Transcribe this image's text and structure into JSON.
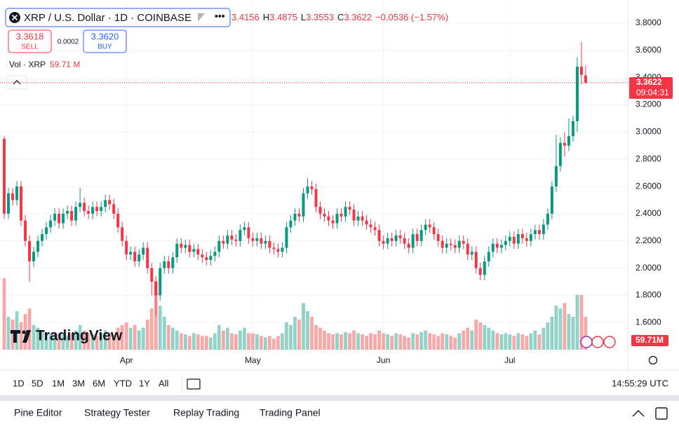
{
  "header": {
    "symbol": "XRP / U.S. Dollar · 1D · COINBASE",
    "open": "3.4156",
    "high_label": "H",
    "high": "3.4875",
    "low_label": "L",
    "low": "3.3553",
    "close_label": "C",
    "close": "3.3622",
    "change": "−0.0536 (−1.57%)",
    "sell_price": "3.3618",
    "sell": "SELL",
    "spread": "0.0002",
    "buy_price": "3.3620",
    "buy": "BUY",
    "volume_label": "Vol · XRP",
    "volume_value": "59.71 M"
  },
  "chart_data": {
    "type": "candlestick",
    "up_color": "#089981",
    "down_color": "#f23645",
    "up_volume_color": "#92d2c8",
    "down_volume_color": "#f7a9a8",
    "xlim": [
      -1,
      148
    ],
    "xticks": [
      {
        "value": 29,
        "label": "Apr"
      },
      {
        "value": 59,
        "label": "May"
      },
      {
        "value": 90,
        "label": "Jun"
      },
      {
        "value": 120,
        "label": "Jul"
      }
    ],
    "ylim": [
      1.37,
      3.97
    ],
    "yticks": [
      {
        "value": 3.8,
        "label": "3.8000"
      },
      {
        "value": 3.6,
        "label": "3.6000"
      },
      {
        "value": 3.4,
        "label": "3.4000"
      },
      {
        "value": 3.2,
        "label": "3.2000"
      },
      {
        "value": 3.0,
        "label": "3.0000"
      },
      {
        "value": 2.8,
        "label": "2.8000"
      },
      {
        "value": 2.6,
        "label": "2.6000"
      },
      {
        "value": 2.4,
        "label": "2.4000"
      },
      {
        "value": 2.2,
        "label": "2.2000"
      },
      {
        "value": 2.0,
        "label": "2.0000"
      },
      {
        "value": 1.8,
        "label": "1.8000"
      },
      {
        "value": 1.6,
        "label": "1.6000"
      }
    ],
    "grid": true,
    "open": [
      2.95,
      2.4,
      2.55,
      2.5,
      2.6,
      2.35,
      2.2,
      2.05,
      2.12,
      2.2,
      2.25,
      2.3,
      2.35,
      2.4,
      2.33,
      2.4,
      2.42,
      2.35,
      2.45,
      2.48,
      2.42,
      2.4,
      2.45,
      2.42,
      2.45,
      2.5,
      2.47,
      2.4,
      2.3,
      2.2,
      2.1,
      2.12,
      2.05,
      2.1,
      2.15,
      2.0,
      1.9,
      1.8,
      2.0,
      2.05,
      2.0,
      2.08,
      2.18,
      2.15,
      2.17,
      2.12,
      2.14,
      2.1,
      2.08,
      2.06,
      2.09,
      2.12,
      2.2,
      2.18,
      2.24,
      2.21,
      2.2,
      2.28,
      2.3,
      2.22,
      2.2,
      2.22,
      2.18,
      2.2,
      2.15,
      2.14,
      2.12,
      2.15,
      2.3,
      2.35,
      2.4,
      2.38,
      2.55,
      2.6,
      2.58,
      2.45,
      2.4,
      2.38,
      2.35,
      2.33,
      2.4,
      2.38,
      2.45,
      2.43,
      2.35,
      2.38,
      2.35,
      2.32,
      2.3,
      2.28,
      2.2,
      2.18,
      2.22,
      2.2,
      2.24,
      2.22,
      2.18,
      2.15,
      2.25,
      2.2,
      2.28,
      2.32,
      2.3,
      2.25,
      2.2,
      2.15,
      2.18,
      2.17,
      2.15,
      2.2,
      2.18,
      2.1,
      2.12,
      2.0,
      1.95,
      2.05,
      2.12,
      2.18,
      2.15,
      2.17,
      2.2,
      2.23,
      2.18,
      2.25,
      2.22,
      2.2,
      2.25,
      2.28,
      2.25,
      2.32,
      2.4,
      2.6,
      2.75,
      2.92,
      2.9,
      2.97,
      3.08,
      3.48,
      3.4156
    ],
    "high": [
      2.97,
      2.59,
      2.59,
      2.64,
      2.64,
      2.39,
      2.24,
      2.16,
      2.24,
      2.29,
      2.34,
      2.39,
      2.44,
      2.44,
      2.44,
      2.46,
      2.46,
      2.49,
      2.59,
      2.52,
      2.46,
      2.49,
      2.49,
      2.49,
      2.54,
      2.54,
      2.51,
      2.44,
      2.34,
      2.24,
      2.16,
      2.16,
      2.14,
      2.19,
      2.19,
      2.04,
      1.94,
      2.04,
      2.09,
      2.09,
      2.12,
      2.22,
      2.22,
      2.21,
      2.21,
      2.18,
      2.18,
      2.14,
      2.12,
      2.13,
      2.16,
      2.24,
      2.24,
      2.28,
      2.28,
      2.25,
      2.32,
      2.34,
      2.34,
      2.26,
      2.26,
      2.26,
      2.24,
      2.24,
      2.19,
      2.18,
      2.19,
      2.34,
      2.39,
      2.44,
      2.44,
      2.59,
      2.66,
      2.64,
      2.62,
      2.49,
      2.44,
      2.42,
      2.39,
      2.44,
      2.44,
      2.49,
      2.49,
      2.47,
      2.42,
      2.42,
      2.39,
      2.36,
      2.34,
      2.32,
      2.24,
      2.26,
      2.26,
      2.28,
      2.28,
      2.26,
      2.22,
      2.29,
      2.29,
      2.32,
      2.36,
      2.36,
      2.34,
      2.29,
      2.24,
      2.22,
      2.22,
      2.21,
      2.24,
      2.24,
      2.22,
      2.16,
      2.16,
      2.04,
      2.09,
      2.16,
      2.22,
      2.22,
      2.21,
      2.24,
      2.27,
      2.27,
      2.29,
      2.29,
      2.26,
      2.29,
      2.32,
      2.32,
      2.36,
      2.44,
      2.64,
      2.98,
      2.96,
      3.0,
      3.1,
      3.12,
      3.55,
      3.66,
      3.4875
    ],
    "low": [
      2.36,
      2.36,
      2.46,
      2.46,
      2.31,
      2.16,
      1.9,
      2.01,
      2.08,
      2.16,
      2.21,
      2.26,
      2.31,
      2.29,
      2.29,
      2.36,
      2.31,
      2.31,
      2.41,
      2.38,
      2.36,
      2.36,
      2.38,
      2.38,
      2.41,
      2.43,
      2.36,
      2.26,
      2.16,
      2.06,
      2.06,
      2.01,
      2.01,
      2.06,
      1.96,
      1.8,
      1.65,
      1.76,
      1.96,
      1.96,
      1.96,
      2.04,
      2.11,
      2.11,
      2.08,
      2.08,
      2.06,
      2.04,
      2.02,
      2.02,
      2.05,
      2.08,
      2.14,
      2.14,
      2.17,
      2.16,
      2.16,
      2.24,
      2.18,
      2.16,
      2.16,
      2.14,
      2.14,
      2.11,
      2.1,
      2.08,
      2.08,
      2.11,
      2.26,
      2.31,
      2.34,
      2.34,
      2.51,
      2.54,
      2.41,
      2.36,
      2.34,
      2.31,
      2.29,
      2.29,
      2.34,
      2.34,
      2.39,
      2.31,
      2.31,
      2.31,
      2.28,
      2.26,
      2.24,
      2.16,
      2.14,
      2.14,
      2.16,
      2.16,
      2.18,
      2.14,
      2.11,
      2.11,
      2.16,
      2.16,
      2.24,
      2.26,
      2.21,
      2.16,
      2.11,
      2.11,
      2.13,
      2.11,
      2.11,
      2.14,
      2.06,
      2.06,
      1.96,
      1.91,
      1.91,
      2.01,
      2.08,
      2.11,
      2.11,
      2.13,
      2.16,
      2.14,
      2.14,
      2.18,
      2.16,
      2.16,
      2.21,
      2.21,
      2.21,
      2.28,
      2.36,
      2.56,
      2.71,
      2.82,
      2.86,
      2.93,
      3.0,
      3.35,
      3.3553
    ],
    "close": [
      2.4,
      2.55,
      2.5,
      2.6,
      2.35,
      2.2,
      2.05,
      2.12,
      2.2,
      2.25,
      2.3,
      2.35,
      2.4,
      2.33,
      2.4,
      2.42,
      2.35,
      2.45,
      2.48,
      2.42,
      2.4,
      2.45,
      2.42,
      2.45,
      2.5,
      2.47,
      2.4,
      2.3,
      2.2,
      2.1,
      2.12,
      2.05,
      2.1,
      2.15,
      2.0,
      1.9,
      1.8,
      2.0,
      2.05,
      2.0,
      2.08,
      2.18,
      2.15,
      2.17,
      2.12,
      2.14,
      2.1,
      2.08,
      2.06,
      2.09,
      2.12,
      2.2,
      2.18,
      2.24,
      2.21,
      2.2,
      2.28,
      2.3,
      2.22,
      2.2,
      2.22,
      2.18,
      2.2,
      2.15,
      2.14,
      2.12,
      2.15,
      2.3,
      2.35,
      2.4,
      2.38,
      2.55,
      2.6,
      2.58,
      2.45,
      2.4,
      2.38,
      2.35,
      2.33,
      2.4,
      2.38,
      2.45,
      2.43,
      2.35,
      2.38,
      2.35,
      2.32,
      2.3,
      2.28,
      2.2,
      2.18,
      2.22,
      2.2,
      2.24,
      2.22,
      2.18,
      2.15,
      2.25,
      2.2,
      2.28,
      2.32,
      2.3,
      2.25,
      2.2,
      2.15,
      2.18,
      2.17,
      2.15,
      2.2,
      2.18,
      2.1,
      2.12,
      2.0,
      1.95,
      2.05,
      2.12,
      2.18,
      2.15,
      2.17,
      2.2,
      2.23,
      2.18,
      2.25,
      2.22,
      2.2,
      2.25,
      2.28,
      2.25,
      2.32,
      2.4,
      2.6,
      2.75,
      2.92,
      2.9,
      2.97,
      3.08,
      3.48,
      3.42,
      3.3622
    ],
    "volume": [
      130,
      60,
      55,
      70,
      50,
      65,
      75,
      45,
      40,
      35,
      30,
      28,
      32,
      30,
      28,
      25,
      30,
      35,
      45,
      35,
      30,
      28,
      25,
      30,
      35,
      30,
      28,
      40,
      45,
      50,
      40,
      45,
      35,
      40,
      55,
      75,
      125,
      80,
      60,
      45,
      40,
      35,
      30,
      28,
      25,
      30,
      28,
      25,
      25,
      22,
      30,
      45,
      35,
      40,
      30,
      28,
      35,
      40,
      30,
      30,
      28,
      25,
      22,
      25,
      20,
      25,
      30,
      50,
      45,
      60,
      55,
      85,
      70,
      60,
      45,
      40,
      35,
      30,
      28,
      30,
      28,
      32,
      30,
      35,
      30,
      28,
      25,
      30,
      28,
      35,
      30,
      28,
      25,
      30,
      28,
      25,
      22,
      30,
      28,
      32,
      35,
      30,
      28,
      25,
      30,
      28,
      25,
      22,
      30,
      35,
      40,
      35,
      55,
      50,
      45,
      40,
      35,
      30,
      28,
      30,
      28,
      25,
      30,
      28,
      25,
      30,
      35,
      28,
      40,
      50,
      60,
      80,
      75,
      85,
      65,
      60,
      100,
      100,
      59.71
    ],
    "last_price_label": "3.3622",
    "countdown": "09:04:31",
    "volume_axis_label": "59.71M"
  },
  "watermark": "TradingView",
  "toolbar": {
    "ranges": [
      "1D",
      "5D",
      "1M",
      "3M",
      "6M",
      "YTD",
      "1Y",
      "All"
    ],
    "time": "14:55:29 UTC"
  },
  "panel_tabs": [
    "Pine Editor",
    "Strategy Tester",
    "Replay Trading",
    "Trading Panel"
  ]
}
